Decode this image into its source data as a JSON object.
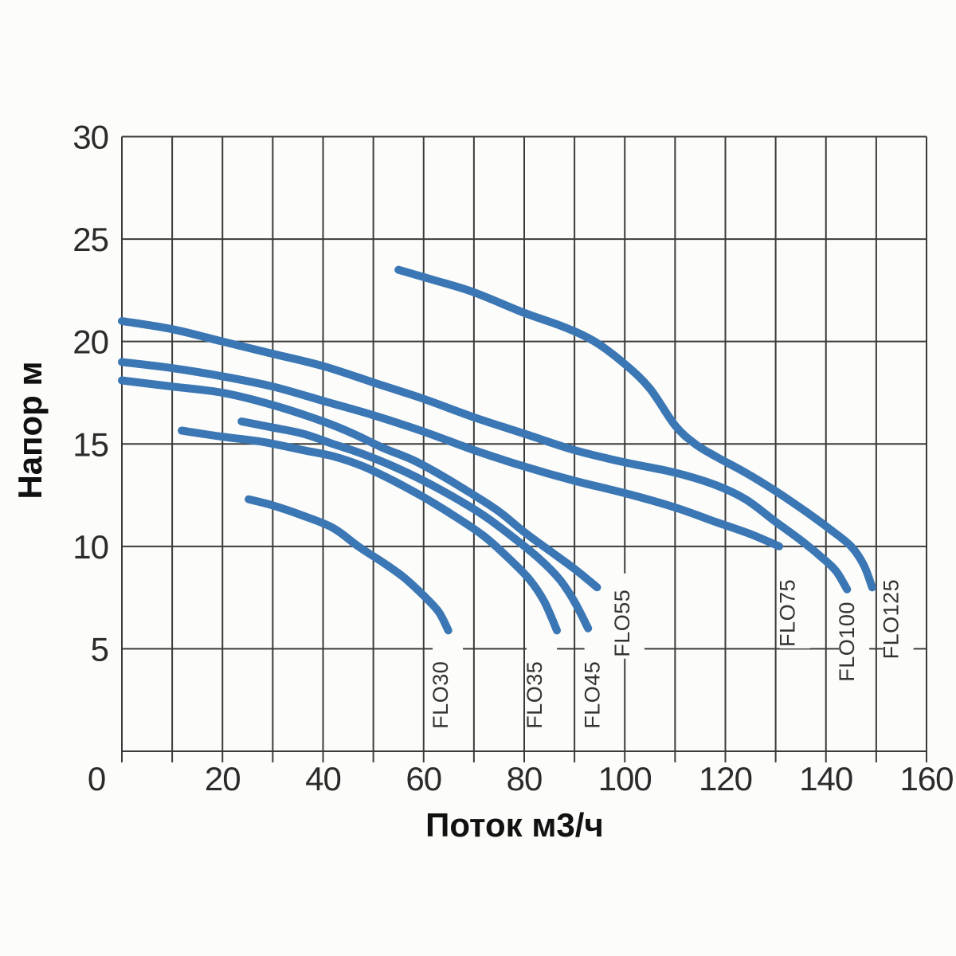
{
  "page": {
    "background": "#fcfcfa"
  },
  "chart_data": {
    "type": "line",
    "title": "",
    "xlabel": "Поток м3/ч",
    "ylabel": "Напор м",
    "xlim": [
      0,
      160
    ],
    "ylim": [
      0,
      30
    ],
    "x_tick_labels": [
      0,
      20,
      40,
      60,
      80,
      100,
      120,
      140,
      160
    ],
    "x_grid_step": 10,
    "y_tick_labels": [
      5,
      10,
      15,
      20,
      25,
      30
    ],
    "y_grid_step": 5,
    "grid": true,
    "legend_position": "inline-rotated-labels",
    "line_color": "#3b77b4",
    "grid_color": "#3b3b3b",
    "text_color": "#2b2b2b",
    "series": [
      {
        "name": "FLO30",
        "points": [
          [
            25.2,
            12.3
          ],
          [
            30,
            12.0
          ],
          [
            36,
            11.5
          ],
          [
            42,
            10.9
          ],
          [
            47,
            10.0
          ],
          [
            52,
            9.2
          ],
          [
            56,
            8.5
          ],
          [
            60,
            7.6
          ],
          [
            63,
            6.8
          ],
          [
            64.9,
            5.9
          ]
        ],
        "label_at": {
          "x": 64.8,
          "y": 3.1
        }
      },
      {
        "name": "FLO35",
        "points": [
          [
            11.9,
            15.65
          ],
          [
            20,
            15.35
          ],
          [
            28,
            15.1
          ],
          [
            36,
            14.7
          ],
          [
            42,
            14.4
          ],
          [
            48,
            13.9
          ],
          [
            54,
            13.2
          ],
          [
            60,
            12.4
          ],
          [
            66,
            11.5
          ],
          [
            72,
            10.5
          ],
          [
            77,
            9.4
          ],
          [
            81,
            8.4
          ],
          [
            84,
            7.3
          ],
          [
            86.5,
            5.9
          ]
        ],
        "label_at": {
          "x": 83.5,
          "y": 3.1
        }
      },
      {
        "name": "FLO45",
        "points": [
          [
            23.8,
            16.1
          ],
          [
            30,
            15.8
          ],
          [
            36,
            15.5
          ],
          [
            42,
            15.0
          ],
          [
            48,
            14.5
          ],
          [
            54,
            13.9
          ],
          [
            60,
            13.2
          ],
          [
            66,
            12.4
          ],
          [
            72,
            11.5
          ],
          [
            78,
            10.4
          ],
          [
            83,
            9.4
          ],
          [
            87,
            8.4
          ],
          [
            90,
            7.3
          ],
          [
            92.7,
            6.0
          ]
        ],
        "label_at": {
          "x": 95.0,
          "y": 3.1
        }
      },
      {
        "name": "FLO55",
        "points": [
          [
            0,
            18.1
          ],
          [
            10,
            17.8
          ],
          [
            20,
            17.5
          ],
          [
            30,
            16.9
          ],
          [
            40,
            16.1
          ],
          [
            46,
            15.5
          ],
          [
            52,
            14.8
          ],
          [
            58,
            14.2
          ],
          [
            64,
            13.4
          ],
          [
            70,
            12.5
          ],
          [
            75,
            11.7
          ],
          [
            80,
            10.7
          ],
          [
            85,
            9.8
          ],
          [
            90,
            8.9
          ],
          [
            94.5,
            8.0
          ]
        ],
        "label_at": {
          "x": 100.9,
          "y": 6.6
        }
      },
      {
        "name": "FLO75",
        "points": [
          [
            0,
            19.0
          ],
          [
            10,
            18.7
          ],
          [
            20,
            18.3
          ],
          [
            30,
            17.8
          ],
          [
            40,
            17.1
          ],
          [
            50,
            16.4
          ],
          [
            60,
            15.6
          ],
          [
            70,
            14.7
          ],
          [
            80,
            13.9
          ],
          [
            90,
            13.2
          ],
          [
            100,
            12.6
          ],
          [
            110,
            11.9
          ],
          [
            118,
            11.2
          ],
          [
            125,
            10.6
          ],
          [
            130.7,
            10.0
          ]
        ],
        "label_at": {
          "x": 133.8,
          "y": 7.1
        }
      },
      {
        "name": "FLO100",
        "points": [
          [
            0,
            21.0
          ],
          [
            10,
            20.6
          ],
          [
            20,
            20.0
          ],
          [
            30,
            19.4
          ],
          [
            40,
            18.8
          ],
          [
            50,
            18.0
          ],
          [
            60,
            17.2
          ],
          [
            70,
            16.3
          ],
          [
            80,
            15.5
          ],
          [
            90,
            14.7
          ],
          [
            100,
            14.1
          ],
          [
            110,
            13.6
          ],
          [
            118,
            13.0
          ],
          [
            124,
            12.3
          ],
          [
            130,
            11.2
          ],
          [
            135,
            10.3
          ],
          [
            139,
            9.5
          ],
          [
            142,
            8.8
          ],
          [
            144.2,
            7.9
          ]
        ],
        "label_at": {
          "x": 145.6,
          "y": 5.7
        }
      },
      {
        "name": "FLO125",
        "points": [
          [
            55,
            23.5
          ],
          [
            62,
            23.0
          ],
          [
            70,
            22.4
          ],
          [
            80,
            21.4
          ],
          [
            88,
            20.7
          ],
          [
            94,
            20.0
          ],
          [
            100,
            18.9
          ],
          [
            105,
            17.7
          ],
          [
            110,
            15.9
          ],
          [
            114,
            15.0
          ],
          [
            118,
            14.4
          ],
          [
            124,
            13.6
          ],
          [
            130,
            12.7
          ],
          [
            136,
            11.7
          ],
          [
            141,
            10.8
          ],
          [
            145,
            10.0
          ],
          [
            147.5,
            9.1
          ],
          [
            149.2,
            8.0
          ]
        ],
        "label_at": {
          "x": 154.4,
          "y": 6.8
        }
      }
    ]
  }
}
